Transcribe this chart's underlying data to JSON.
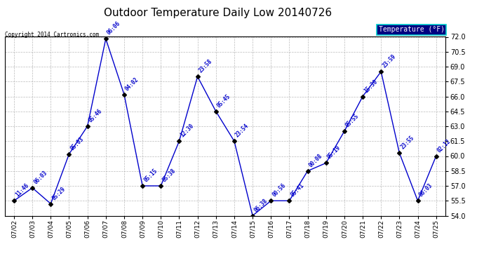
{
  "title": "Outdoor Temperature Daily Low 20140726",
  "copyright": "Copyright 2014 Cartronics.com",
  "legend_label": "Temperature (°F)",
  "dates": [
    "07/02",
    "07/03",
    "07/04",
    "07/05",
    "07/06",
    "07/07",
    "07/08",
    "07/09",
    "07/10",
    "07/11",
    "07/12",
    "07/13",
    "07/14",
    "07/15",
    "07/16",
    "07/17",
    "07/18",
    "07/19",
    "07/20",
    "07/21",
    "07/22",
    "07/23",
    "07/24",
    "07/25"
  ],
  "temps": [
    55.5,
    56.8,
    55.2,
    60.2,
    63.0,
    71.8,
    66.2,
    57.0,
    57.0,
    61.5,
    68.0,
    64.5,
    61.5,
    54.0,
    55.5,
    55.5,
    58.5,
    59.3,
    62.5,
    66.0,
    68.5,
    60.3,
    55.5,
    60.0
  ],
  "time_labels": [
    "11:46",
    "06:03",
    "05:29",
    "05:03",
    "05:46",
    "06:06",
    "04:02",
    "05:15",
    "05:38",
    "12:30",
    "23:58",
    "05:45",
    "23:54",
    "06:38",
    "00:56",
    "05:41",
    "00:08",
    "05:19",
    "05:55",
    "15:30",
    "23:59",
    "23:55",
    "06:03",
    "02:12"
  ],
  "ylim": [
    54.0,
    72.0
  ],
  "yticks": [
    54.0,
    55.5,
    57.0,
    58.5,
    60.0,
    61.5,
    63.0,
    64.5,
    66.0,
    67.5,
    69.0,
    70.5,
    72.0
  ],
  "line_color": "#0000cc",
  "marker_color": "#000000",
  "label_color": "#0000cc",
  "bg_color": "#ffffff",
  "title_fontsize": 11,
  "legend_bg": "#000080",
  "legend_fg": "#ffffff",
  "grid_color": "#aaaaaa"
}
